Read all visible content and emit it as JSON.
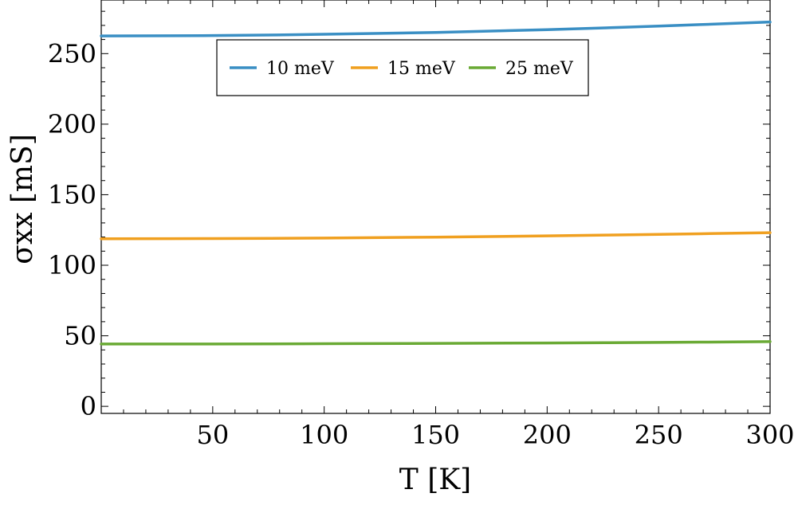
{
  "chart_data": {
    "type": "line",
    "xlabel": "T [K]",
    "ylabel": "σxx [mS]",
    "xlim": [
      0,
      300
    ],
    "ylim": [
      -5,
      288
    ],
    "xticks": [
      50,
      100,
      150,
      200,
      250,
      300
    ],
    "yticks": [
      0,
      50,
      100,
      150,
      200,
      250
    ],
    "grid": false,
    "legend_position": "top-center",
    "series": [
      {
        "name": "10 meV",
        "color": "#3a8fc4",
        "x": [
          0,
          50,
          100,
          150,
          200,
          250,
          300
        ],
        "y": [
          262.5,
          262.8,
          263.7,
          265.0,
          267.0,
          269.5,
          272.4
        ]
      },
      {
        "name": "15 meV",
        "color": "#f0a020",
        "x": [
          0,
          50,
          100,
          150,
          200,
          250,
          300
        ],
        "y": [
          118.8,
          118.9,
          119.3,
          119.9,
          120.8,
          121.9,
          123.1
        ]
      },
      {
        "name": "25 meV",
        "color": "#6aaa35",
        "x": [
          0,
          50,
          100,
          150,
          200,
          250,
          300
        ],
        "y": [
          44.2,
          44.2,
          44.4,
          44.6,
          44.9,
          45.3,
          45.9
        ]
      }
    ]
  }
}
